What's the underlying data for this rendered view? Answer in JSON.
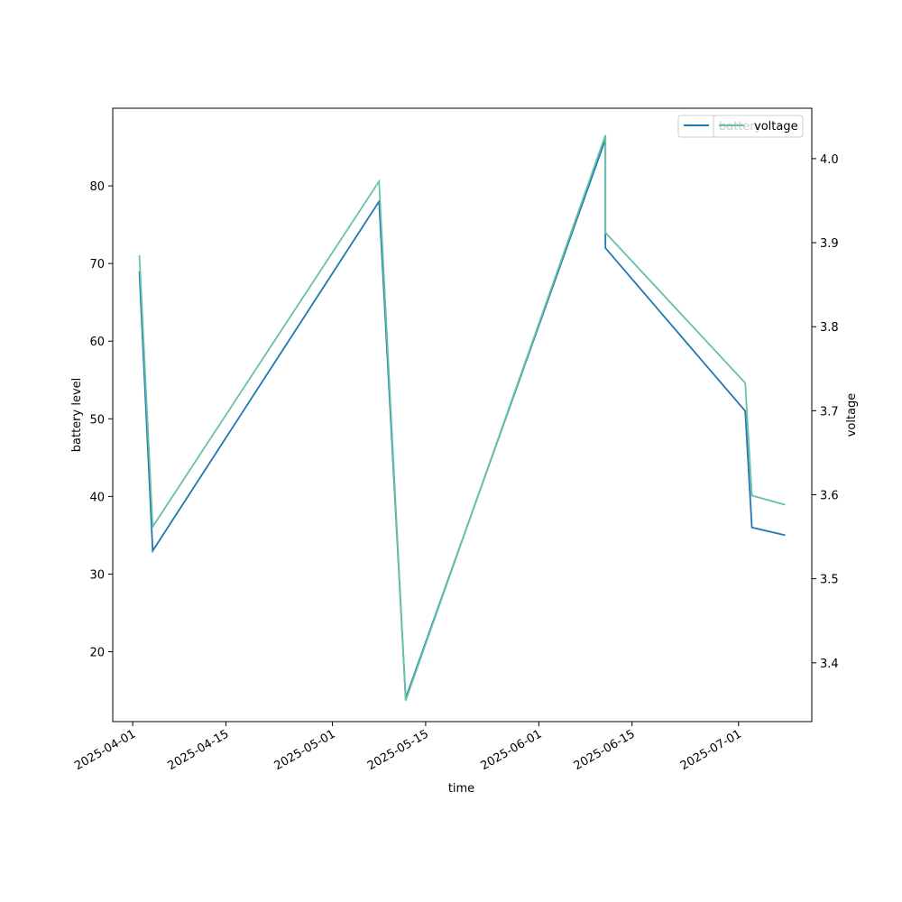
{
  "chart_data": {
    "type": "line",
    "x": [
      "2025-04-02",
      "2025-04-04",
      "2025-05-08",
      "2025-05-12",
      "2025-06-11",
      "2025-06-11",
      "2025-07-02",
      "2025-07-03",
      "2025-07-08"
    ],
    "xlabel": "time",
    "ylabel": "battery level",
    "y2label": "voltage",
    "xlim": [
      "2025-03-29",
      "2025-07-12"
    ],
    "ylim": [
      11,
      90
    ],
    "y2lim": [
      3.33,
      4.06
    ],
    "xticks": [
      "2025-04-01",
      "2025-04-15",
      "2025-05-01",
      "2025-05-15",
      "2025-06-01",
      "2025-06-15",
      "2025-07-01"
    ],
    "yticks": [
      20,
      30,
      40,
      50,
      60,
      70,
      80
    ],
    "y2ticks": [
      "3.4",
      "3.5",
      "3.6",
      "3.7",
      "3.8",
      "3.9",
      "4.0"
    ],
    "grid": false,
    "legend_placement": "top-right",
    "series": [
      {
        "name": "battery",
        "axis": "left",
        "color": "#1f77b4",
        "values": [
          69,
          33,
          78,
          14,
          86,
          72,
          51,
          36,
          35
        ]
      },
      {
        "name": "voltage",
        "axis": "right",
        "color": "#66c2a5",
        "values": [
          3.885,
          3.562,
          3.973,
          3.355,
          4.028,
          3.912,
          3.733,
          3.599,
          3.588
        ]
      }
    ],
    "legend_overlap_text": "battery"
  }
}
